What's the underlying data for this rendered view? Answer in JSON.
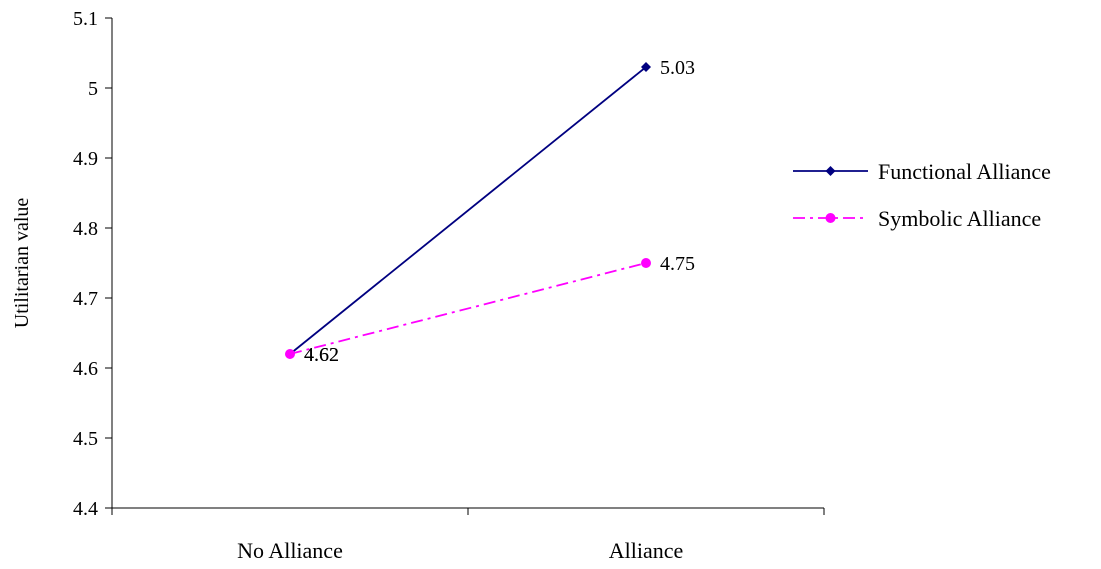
{
  "chart_data": {
    "type": "line",
    "title": "",
    "xlabel": "",
    "ylabel": "Utilitarian value",
    "categories": [
      "No Alliance",
      "Alliance"
    ],
    "ylim": [
      4.4,
      5.1
    ],
    "yticks": [
      "4.4",
      "4.5",
      "4.6",
      "4.7",
      "4.8",
      "4.9",
      "5",
      "5.1"
    ],
    "grid": false,
    "legend_position": "right",
    "series": [
      {
        "name": "Functional Alliance",
        "values": [
          4.62,
          5.03
        ],
        "data_labels": [
          "4.62",
          "5.03"
        ],
        "color": "#000080",
        "line_style": "solid",
        "marker": "diamond"
      },
      {
        "name": "Symbolic Alliance",
        "values": [
          4.62,
          4.75
        ],
        "data_labels": [
          "4.62",
          "4.75"
        ],
        "color": "#FF00FF",
        "line_style": "dash-dot",
        "marker": "circle"
      }
    ]
  }
}
